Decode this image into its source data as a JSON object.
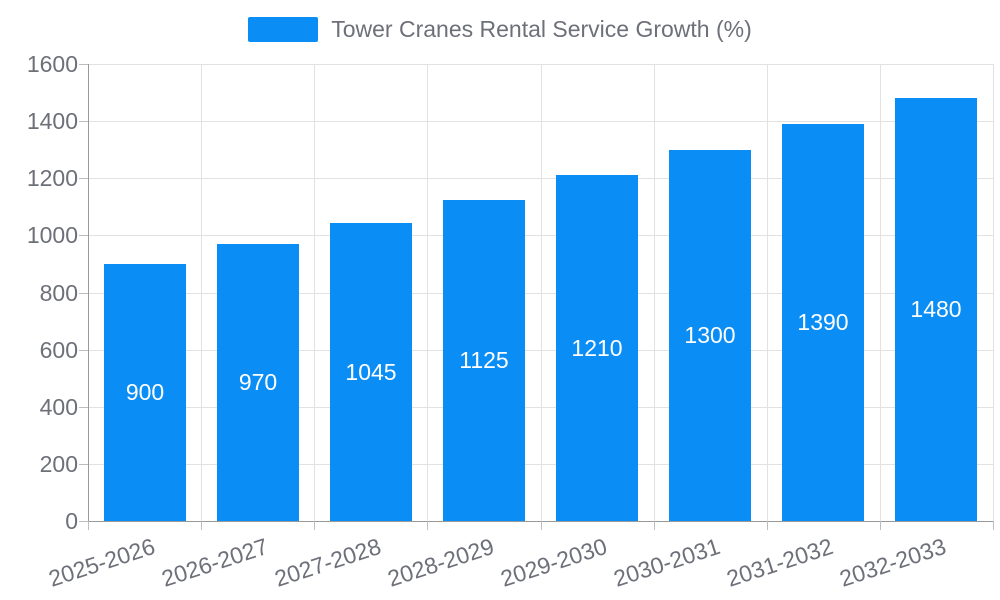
{
  "chart_data": {
    "type": "bar",
    "title": "Tower Cranes Rental Service Growth (%)",
    "legend_label": "Tower Cranes Rental Service Growth (%)",
    "legend_position": "top-center",
    "categories": [
      "2025-2026",
      "2026-2027",
      "2027-2028",
      "2028-2029",
      "2029-2030",
      "2030-2031",
      "2031-2032",
      "2032-2033"
    ],
    "values": [
      900,
      970,
      1045,
      1125,
      1210,
      1300,
      1390,
      1480
    ],
    "xlabel": "",
    "ylabel": "",
    "ylim": [
      0,
      1600
    ],
    "ytick_step": 200,
    "yticks": [
      0,
      200,
      400,
      600,
      800,
      1000,
      1200,
      1400,
      1600
    ],
    "grid": "horizontal-and-vertical",
    "x_label_rotation_deg": -18,
    "bar_value_label_position": "inside-center",
    "colors": {
      "bar": "#0a8df5",
      "bar_label": "#ffffff",
      "axis_label": "#6e7079",
      "legend_text": "#6e7079",
      "grid": "#e2e2e2",
      "axis_line": "#999999",
      "tick": "#bdbdbd",
      "background": "#ffffff"
    }
  }
}
